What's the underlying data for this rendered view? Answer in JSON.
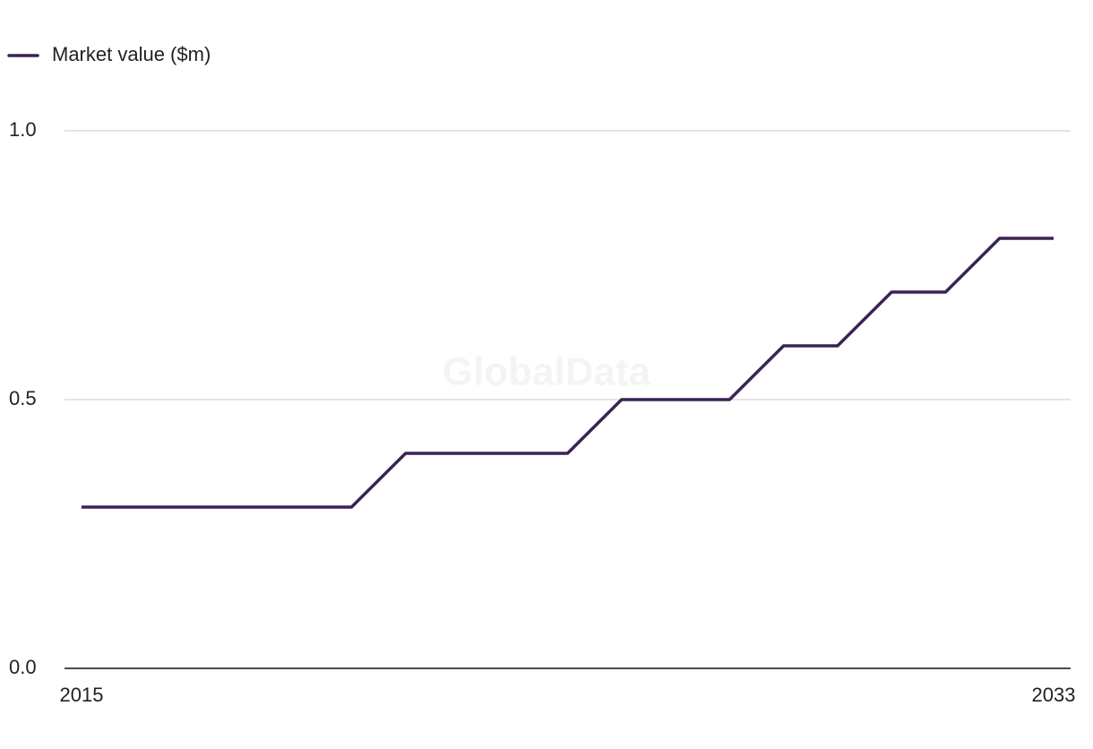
{
  "chart_data": {
    "type": "line",
    "watermark": "GlobalData",
    "x": [
      2015,
      2016,
      2017,
      2018,
      2019,
      2020,
      2021,
      2022,
      2023,
      2024,
      2025,
      2026,
      2027,
      2028,
      2029,
      2030,
      2031,
      2032,
      2033
    ],
    "series": [
      {
        "name": "Market value ($m)",
        "color": "#3a2453",
        "values": [
          0.3,
          0.3,
          0.3,
          0.3,
          0.3,
          0.3,
          0.4,
          0.4,
          0.4,
          0.4,
          0.5,
          0.5,
          0.5,
          0.6,
          0.6,
          0.7,
          0.7,
          0.8,
          0.8
        ]
      }
    ],
    "xlim": [
      2015,
      2033
    ],
    "xticks": [
      2015,
      2033
    ],
    "ylim": [
      0,
      1
    ],
    "yticks": [
      {
        "value": 0,
        "label": "0.0"
      },
      0.5,
      {
        "value": 1,
        "label": "1.0"
      }
    ],
    "grid": true,
    "legend": "top-left"
  }
}
